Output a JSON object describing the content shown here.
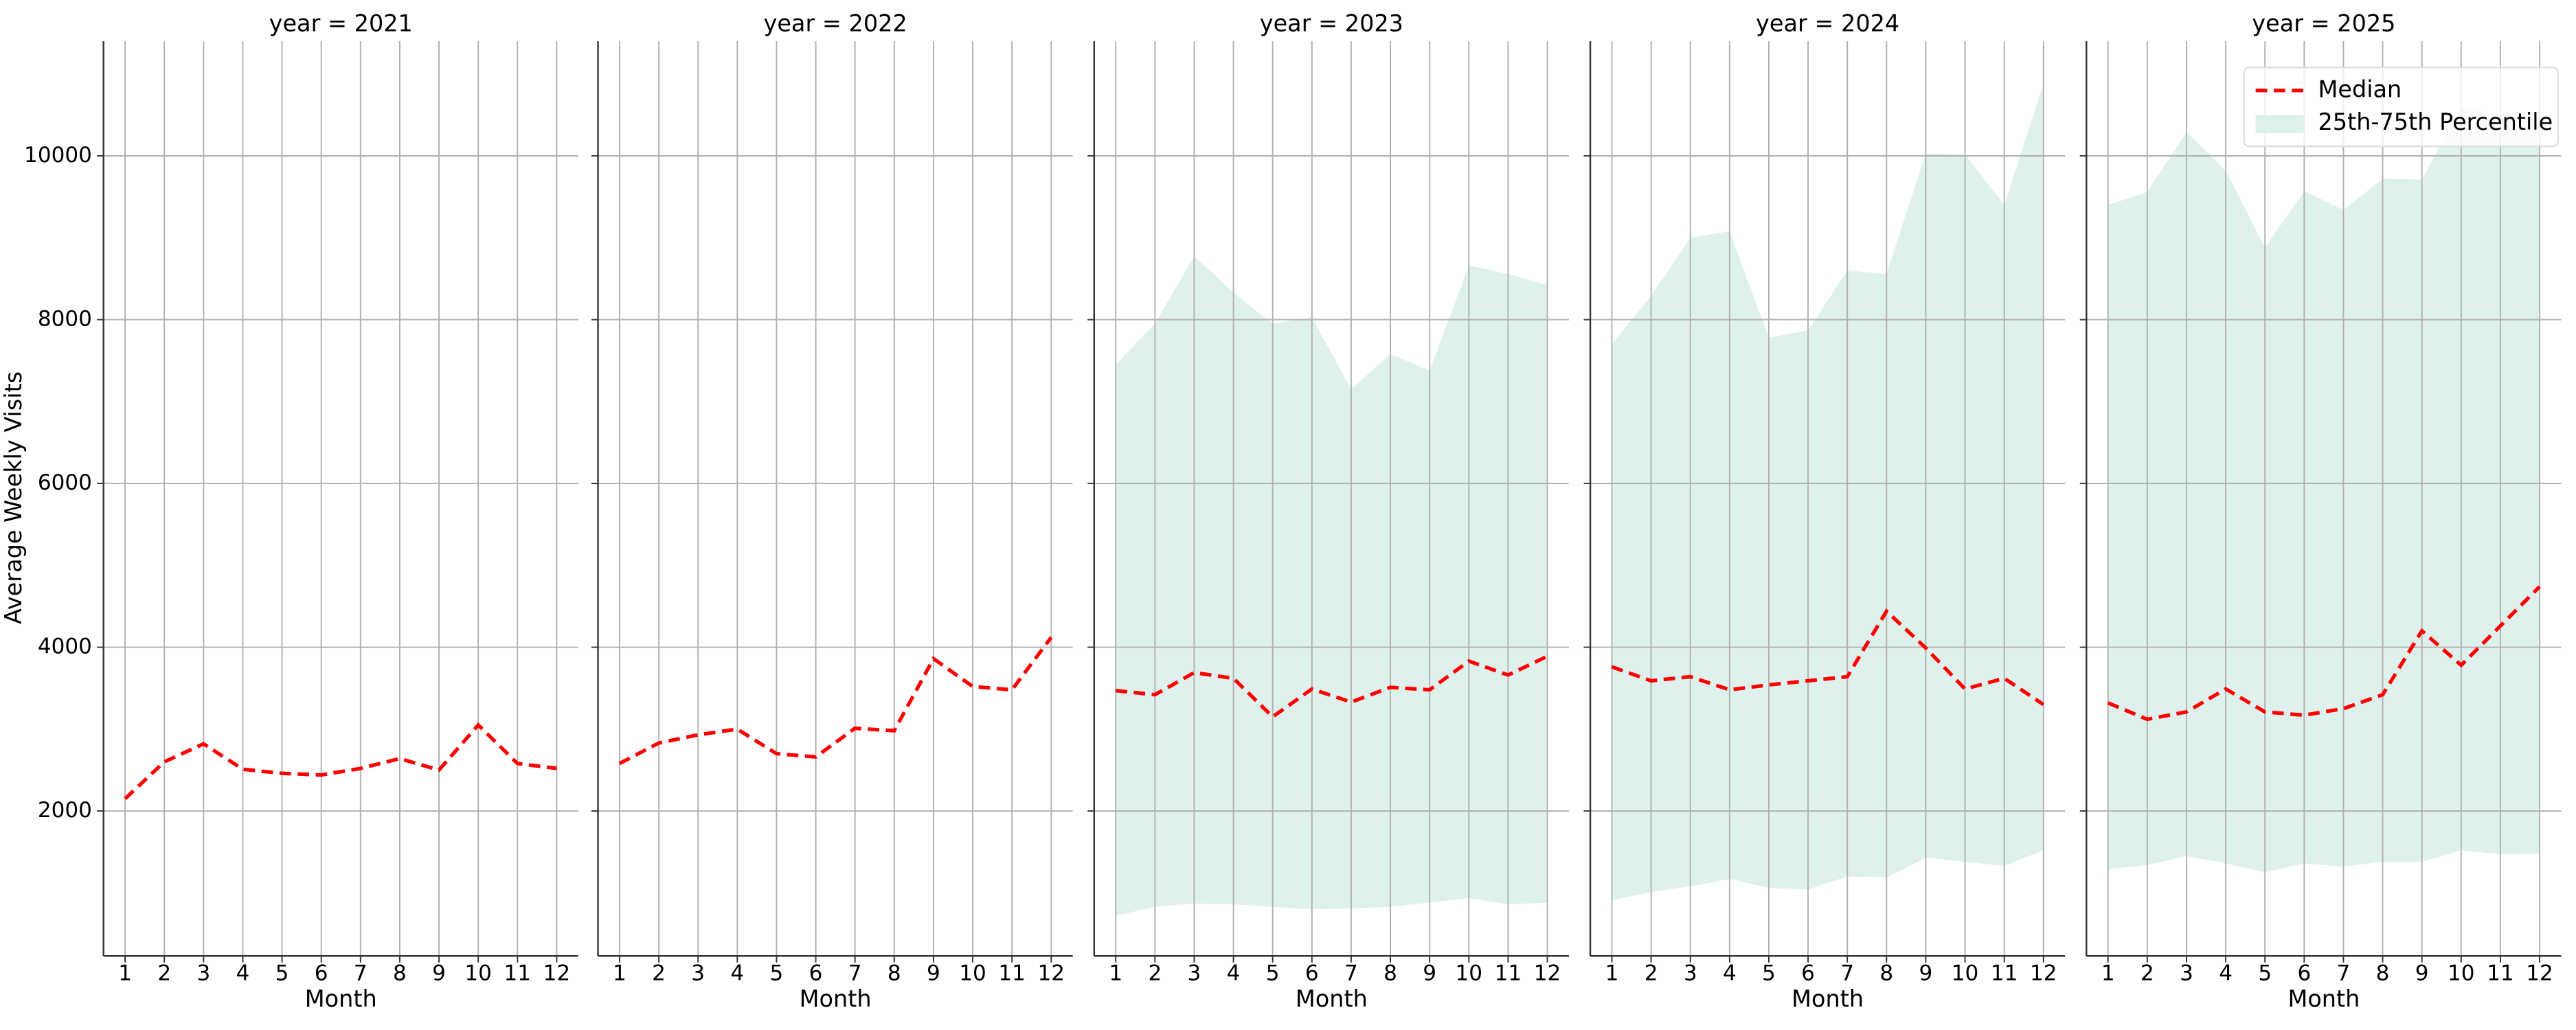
{
  "chart_data": {
    "type": "line",
    "ylabel": "Average Weekly Visits",
    "ylim": [
      230,
      11400
    ],
    "yticks": [
      2000,
      4000,
      6000,
      8000,
      10000
    ],
    "xlim": [
      0.45,
      12.55
    ],
    "grid": true,
    "legend": "upper right",
    "series": [
      {
        "name": "Median",
        "color": "#ff0000",
        "style": "dashed"
      },
      {
        "name": "25th-75th Percentile",
        "color": "#dff1ec",
        "kind": "band"
      }
    ],
    "panels": [
      {
        "title": "year = 2021",
        "xlabel": "Month",
        "x": [
          1,
          2,
          3,
          4,
          5,
          6,
          7,
          8,
          9,
          10,
          11,
          12
        ],
        "series": [
          {
            "values": [
              2150,
              2600,
              2820,
              2510,
              2460,
              2440,
              2520,
              2640,
              2500,
              3050,
              2580,
              2520
            ]
          }
        ]
      },
      {
        "title": "year = 2022",
        "xlabel": "Month",
        "x": [
          1,
          2,
          3,
          4,
          5,
          6,
          7,
          8,
          9,
          10,
          11,
          12
        ],
        "series": [
          {
            "values": [
              2580,
              2830,
              2930,
              3000,
              2700,
              2660,
              3010,
              2980,
              3860,
              3520,
              3480,
              4120
            ]
          }
        ]
      },
      {
        "title": "year = 2023",
        "xlabel": "Month",
        "x": [
          1,
          2,
          3,
          4,
          5,
          6,
          7,
          8,
          9,
          10,
          11,
          12
        ],
        "series": [
          {
            "values": [
              3470,
              3420,
              3690,
              3620,
              3150,
              3490,
              3330,
              3510,
              3480,
              3830,
              3660,
              3890
            ]
          },
          {
            "lower": [
              720,
              830,
              870,
              860,
              830,
              800,
              810,
              830,
              880,
              940,
              860,
              880
            ],
            "upper": [
              7450,
              7950,
              8780,
              8330,
              7950,
              8030,
              7150,
              7580,
              7380,
              8660,
              8560,
              8420
            ]
          }
        ]
      },
      {
        "title": "year = 2024",
        "xlabel": "Month",
        "x": [
          1,
          2,
          3,
          4,
          5,
          6,
          7,
          8,
          9,
          10,
          11,
          12
        ],
        "series": [
          {
            "values": [
              3760,
              3590,
              3640,
              3480,
              3540,
              3590,
              3640,
              4440,
              3990,
              3490,
              3620,
              3300
            ]
          },
          {
            "lower": [
              910,
              1010,
              1080,
              1170,
              1060,
              1040,
              1200,
              1190,
              1430,
              1380,
              1330,
              1520
            ],
            "upper": [
              7700,
              8290,
              9000,
              9080,
              7780,
              7870,
              8600,
              8560,
              10030,
              10020,
              9400,
              10880
            ]
          }
        ]
      },
      {
        "title": "year = 2025",
        "xlabel": "Month",
        "x": [
          1,
          2,
          3,
          4,
          5,
          6,
          7,
          8,
          9,
          10,
          11,
          12
        ],
        "series": [
          {
            "values": [
              3320,
              3120,
              3210,
              3490,
              3210,
              3170,
              3250,
              3420,
              4200,
              3780,
              4260,
              4740
            ]
          },
          {
            "lower": [
              1290,
              1340,
              1450,
              1360,
              1250,
              1360,
              1320,
              1380,
              1380,
              1520,
              1470,
              1480
            ],
            "upper": [
              9400,
              9560,
              10290,
              9820,
              8880,
              9570,
              9340,
              9720,
              9710,
              10600,
              10500,
              10450
            ]
          }
        ]
      }
    ]
  }
}
